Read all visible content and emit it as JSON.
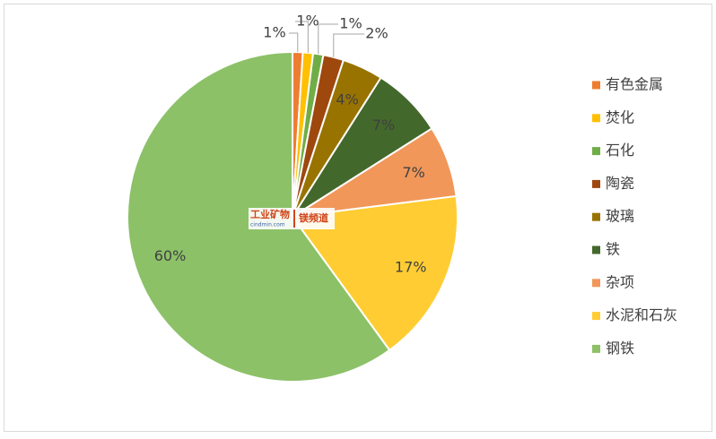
{
  "chart_data": {
    "type": "pie",
    "categories": [
      "有色金属",
      "焚化",
      "石化",
      "陶瓷",
      "玻璃",
      "铁",
      "杂项",
      "水泥和石灰",
      "钢铁"
    ],
    "values": [
      1,
      1,
      1,
      2,
      4,
      7,
      7,
      17,
      60
    ],
    "value_labels": [
      "1%",
      "1%",
      "1%",
      "2%",
      "4%",
      "7%",
      "7%",
      "17%",
      "60%"
    ],
    "colors": [
      "#ed7d31",
      "#ffc000",
      "#70ad47",
      "#9e480e",
      "#997300",
      "#43682b",
      "#f1975a",
      "#ffcd33",
      "#8cc168"
    ],
    "legend": "right"
  },
  "watermark": {
    "name": "工业矿物",
    "site": "cindmin.com",
    "channel": "镁频道"
  }
}
